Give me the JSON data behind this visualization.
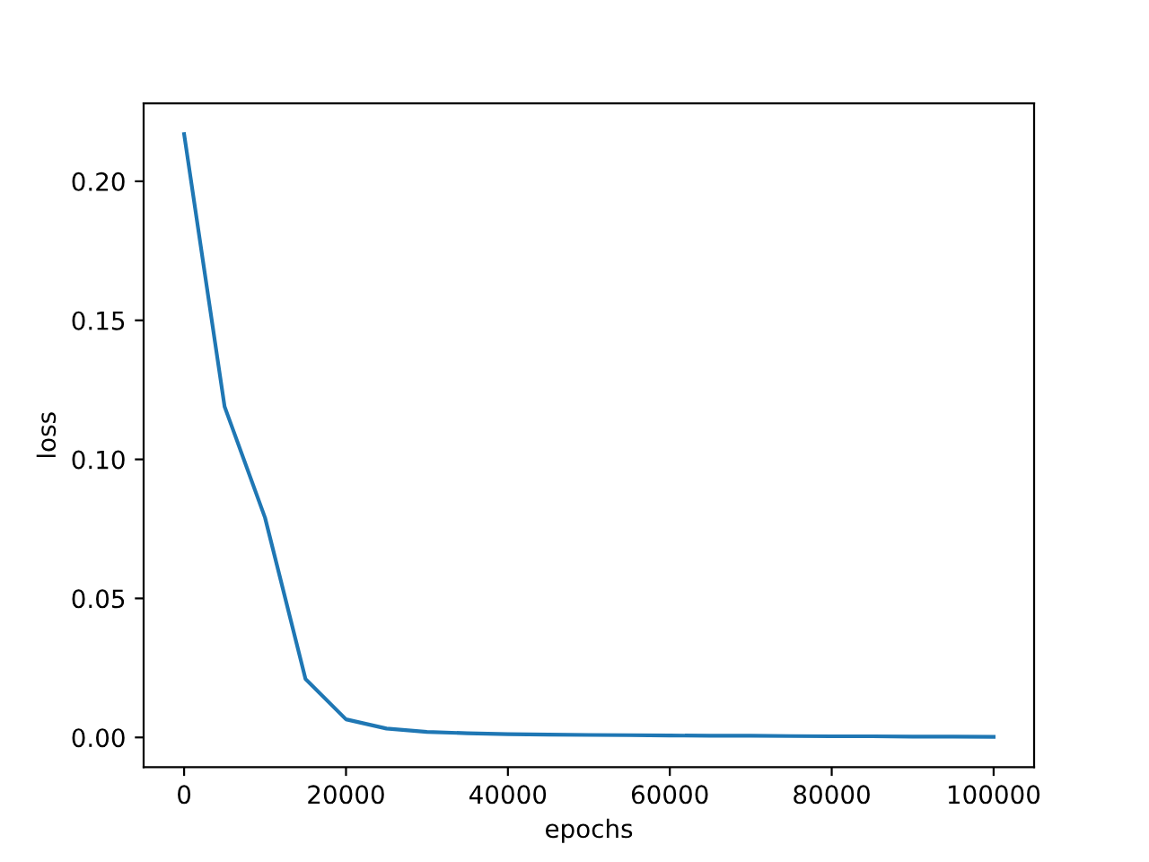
{
  "chart_data": {
    "type": "line",
    "xlabel": "epochs",
    "ylabel": "loss",
    "x": [
      0,
      5000,
      10000,
      15000,
      20000,
      25000,
      30000,
      35000,
      40000,
      45000,
      50000,
      55000,
      60000,
      65000,
      70000,
      75000,
      80000,
      85000,
      90000,
      95000,
      100000
    ],
    "series": [
      {
        "color": "#1f77b4",
        "values": [
          0.217,
          0.119,
          0.079,
          0.021,
          0.0065,
          0.0032,
          0.002,
          0.0015,
          0.0012,
          0.001,
          0.0009,
          0.0008,
          0.0007,
          0.0006,
          0.0006,
          0.0005,
          0.0004,
          0.0004,
          0.0003,
          0.0003,
          0.0002
        ]
      }
    ],
    "xlim": [
      -5000,
      105000
    ],
    "xticks": [
      0,
      20000,
      40000,
      60000,
      80000,
      100000
    ],
    "ylim": [
      -0.0107,
      0.228
    ],
    "yticks": [
      {
        "value": 0,
        "label": "0.00"
      },
      {
        "value": 0.05,
        "label": "0.05"
      },
      {
        "value": 0.1,
        "label": "0.10"
      },
      {
        "value": 0.15,
        "label": "0.15"
      },
      {
        "value": 0.2,
        "label": "0.20"
      }
    ],
    "grid": false
  }
}
